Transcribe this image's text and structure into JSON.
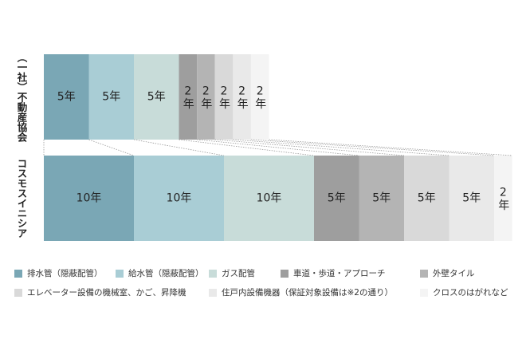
{
  "chart_data": {
    "type": "stacked-bar",
    "categories": [
      "（一社）不動産協会",
      "コスモスイニシア"
    ],
    "series": [
      {
        "name": "排水管（隠蔽配管）",
        "color": "#7aa7b5",
        "values": [
          5,
          10
        ],
        "value_labels": [
          "5年",
          "10年"
        ]
      },
      {
        "name": "給水管（隠蔽配管）",
        "color": "#a9cdd5",
        "values": [
          5,
          10
        ],
        "value_labels": [
          "5年",
          "10年"
        ]
      },
      {
        "name": "ガス配管",
        "color": "#c8dcd9",
        "values": [
          5,
          10
        ],
        "value_labels": [
          "5年",
          "10年"
        ]
      },
      {
        "name": "車道・歩道・アプローチ",
        "color": "#9e9e9e",
        "values": [
          2,
          5
        ],
        "value_labels": [
          "2年",
          "5年"
        ]
      },
      {
        "name": "外壁タイル",
        "color": "#b4b4b4",
        "values": [
          2,
          5
        ],
        "value_labels": [
          "2年",
          "5年"
        ]
      },
      {
        "name": "エレベーター設備の機械室、かご、昇降機",
        "color": "#d9d9d9",
        "values": [
          2,
          5
        ],
        "value_labels": [
          "2年",
          "5年"
        ]
      },
      {
        "name": "住戸内設備機器（保証対象設備は※2の通り）",
        "color": "#e9e9e9",
        "values": [
          2,
          5
        ],
        "value_labels": [
          "2年",
          "5年"
        ]
      },
      {
        "name": "クロスのはがれなど",
        "color": "#f4f4f4",
        "values": [
          2,
          2
        ],
        "value_labels": [
          "2年",
          "2年"
        ]
      }
    ]
  }
}
